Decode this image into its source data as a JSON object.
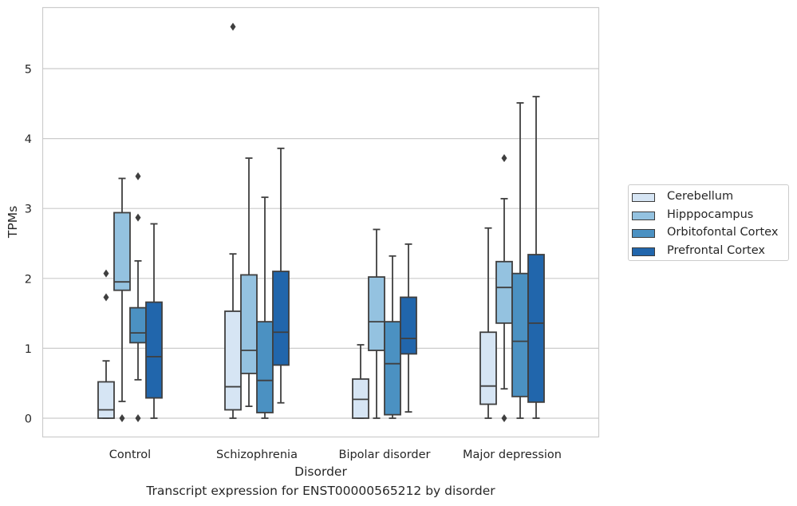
{
  "caption": "Transcript expression for ENST00000565212 by disorder",
  "chart_data": {
    "type": "box",
    "title": "",
    "xlabel": "Disorder",
    "ylabel": "TPMs",
    "ylim": [
      -0.28,
      5.9
    ],
    "yticks": [
      0,
      1,
      2,
      3,
      4,
      5
    ],
    "grid": "horizontal",
    "legend_position": "right",
    "categories": [
      "Control",
      "Schizophrenia",
      "Bipolar disorder",
      "Major depression"
    ],
    "series": [
      {
        "name": "Cerebellum",
        "color": "#d6e5f4",
        "boxes": [
          {
            "whisker_low": 0,
            "q1": 0,
            "median": 0.12,
            "q3": 0.52,
            "whisker_high": 0.82,
            "outliers": [
              2.07,
              1.73
            ]
          },
          {
            "whisker_low": 0,
            "q1": 0.12,
            "median": 0.45,
            "q3": 1.53,
            "whisker_high": 2.35,
            "outliers": [
              5.6
            ]
          },
          {
            "whisker_low": 0,
            "q1": 0,
            "median": 0.27,
            "q3": 0.56,
            "whisker_high": 1.05,
            "outliers": []
          },
          {
            "whisker_low": 0,
            "q1": 0.2,
            "median": 0.46,
            "q3": 1.23,
            "whisker_high": 2.72,
            "outliers": []
          }
        ]
      },
      {
        "name": "Hipppocampus",
        "color": "#94c2e0",
        "boxes": [
          {
            "whisker_low": 0.24,
            "q1": 1.83,
            "median": 1.95,
            "q3": 2.94,
            "whisker_high": 3.43,
            "outliers": [
              0
            ]
          },
          {
            "whisker_low": 0.17,
            "q1": 0.64,
            "median": 0.97,
            "q3": 2.05,
            "whisker_high": 3.72,
            "outliers": []
          },
          {
            "whisker_low": 0,
            "q1": 0.97,
            "median": 1.38,
            "q3": 2.02,
            "whisker_high": 2.7,
            "outliers": []
          },
          {
            "whisker_low": 0.42,
            "q1": 1.36,
            "median": 1.87,
            "q3": 2.24,
            "whisker_high": 3.14,
            "outliers": [
              3.72,
              0
            ]
          }
        ]
      },
      {
        "name": "Orbitofontal Cortex",
        "color": "#4b91c2",
        "boxes": [
          {
            "whisker_low": 0.55,
            "q1": 1.08,
            "median": 1.22,
            "q3": 1.58,
            "whisker_high": 2.25,
            "outliers": [
              3.46,
              2.87,
              0
            ]
          },
          {
            "whisker_low": 0,
            "q1": 0.08,
            "median": 0.54,
            "q3": 1.38,
            "whisker_high": 3.16,
            "outliers": []
          },
          {
            "whisker_low": 0,
            "q1": 0.05,
            "median": 0.78,
            "q3": 1.38,
            "whisker_high": 2.32,
            "outliers": []
          },
          {
            "whisker_low": 0,
            "q1": 0.31,
            "median": 1.1,
            "q3": 2.07,
            "whisker_high": 4.51,
            "outliers": []
          }
        ]
      },
      {
        "name": "Prefrontal Cortex",
        "color": "#2166ac",
        "boxes": [
          {
            "whisker_low": 0,
            "q1": 0.29,
            "median": 0.88,
            "q3": 1.66,
            "whisker_high": 2.78,
            "outliers": []
          },
          {
            "whisker_low": 0.22,
            "q1": 0.76,
            "median": 1.23,
            "q3": 2.1,
            "whisker_high": 3.86,
            "outliers": []
          },
          {
            "whisker_low": 0.09,
            "q1": 0.92,
            "median": 1.14,
            "q3": 1.73,
            "whisker_high": 2.49,
            "outliers": []
          },
          {
            "whisker_low": 0,
            "q1": 0.23,
            "median": 1.36,
            "q3": 2.34,
            "whisker_high": 4.6,
            "outliers": []
          }
        ]
      }
    ]
  }
}
